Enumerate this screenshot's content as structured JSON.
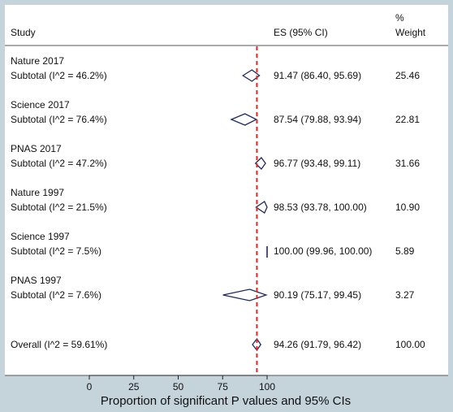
{
  "chart_data": {
    "type": "forest",
    "headers": {
      "study": "Study",
      "es": "ES (95% CI)",
      "weight_pct": "%",
      "weight": "Weight"
    },
    "groups": [
      {
        "label": "Nature 2017",
        "subtotal_label": "Subtotal  (I^2 = 46.2%)",
        "es": 91.47,
        "lo": 86.4,
        "hi": 95.69,
        "es_text": "91.47 (86.40, 95.69)",
        "weight": "25.46"
      },
      {
        "label": "Science 2017",
        "subtotal_label": "Subtotal  (I^2 = 76.4%)",
        "es": 87.54,
        "lo": 79.88,
        "hi": 93.94,
        "es_text": "87.54 (79.88, 93.94)",
        "weight": "22.81"
      },
      {
        "label": "PNAS 2017",
        "subtotal_label": "Subtotal  (I^2 = 47.2%)",
        "es": 96.77,
        "lo": 93.48,
        "hi": 99.11,
        "es_text": "96.77 (93.48, 99.11)",
        "weight": "31.66"
      },
      {
        "label": "Nature 1997",
        "subtotal_label": "Subtotal  (I^2 = 21.5%)",
        "es": 98.53,
        "lo": 93.78,
        "hi": 100.0,
        "es_text": "98.53 (93.78, 100.00)",
        "weight": "10.90"
      },
      {
        "label": "Science 1997",
        "subtotal_label": "Subtotal  (I^2 = 7.5%)",
        "es": 100.0,
        "lo": 99.96,
        "hi": 100.0,
        "es_text": "100.00 (99.96, 100.00)",
        "weight": "5.89"
      },
      {
        "label": "PNAS 1997",
        "subtotal_label": "Subtotal  (I^2 = 7.6%)",
        "es": 90.19,
        "lo": 75.17,
        "hi": 99.45,
        "es_text": "90.19 (75.17, 99.45)",
        "weight": "3.27"
      }
    ],
    "overall": {
      "label": "Overall  (I^2 = 59.61%)",
      "es": 94.26,
      "lo": 91.79,
      "hi": 96.42,
      "es_text": "94.26 (91.79, 96.42)",
      "weight": "100.00"
    },
    "xaxis": {
      "ticks": [
        0,
        25,
        50,
        75,
        100
      ],
      "xlim": [
        0,
        100
      ],
      "label": "Proportion of significant P values and 95% CIs"
    },
    "reference_line": {
      "x": 94.26,
      "style": "dashed",
      "color": "#e8262a"
    },
    "colors": {
      "diamond": "#1f2a5c",
      "background": "#c5d3db",
      "panel": "#ffffff"
    }
  }
}
